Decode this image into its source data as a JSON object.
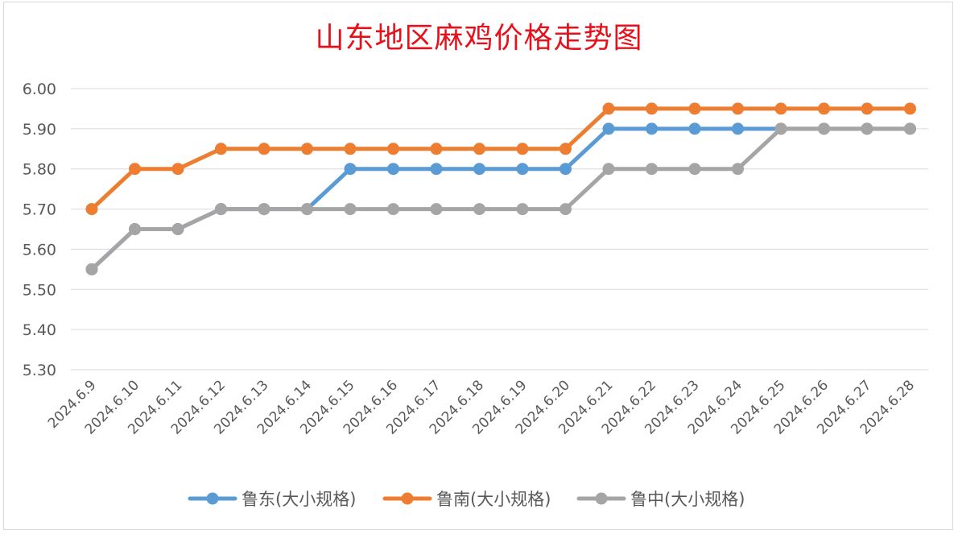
{
  "chart_data": {
    "type": "line",
    "title": "山东地区麻鸡价格走势图",
    "xlabel": "",
    "ylabel": "",
    "ylim": [
      5.3,
      6.0
    ],
    "y_ticks": [
      "6.00",
      "5.90",
      "5.80",
      "5.70",
      "5.60",
      "5.50",
      "5.40",
      "5.30"
    ],
    "grid": true,
    "legend_position": "bottom",
    "categories": [
      "2024.6.9",
      "2024.6.10",
      "2024.6.11",
      "2024.6.12",
      "2024.6.13",
      "2024.6.14",
      "2024.6.15",
      "2024.6.16",
      "2024.6.17",
      "2024.6.18",
      "2024.6.19",
      "2024.6.20",
      "2024.6.21",
      "2024.6.22",
      "2024.6.23",
      "2024.6.24",
      "2024.6.25",
      "2024.6.26",
      "2024.6.27",
      "2024.6.28"
    ],
    "series": [
      {
        "name": "鲁东(大小规格)",
        "color": "#5b9bd5",
        "values": [
          5.55,
          5.65,
          5.65,
          5.7,
          5.7,
          5.7,
          5.8,
          5.8,
          5.8,
          5.8,
          5.8,
          5.8,
          5.9,
          5.9,
          5.9,
          5.9,
          5.9,
          5.9,
          5.9,
          5.9
        ]
      },
      {
        "name": "鲁南(大小规格)",
        "color": "#ed7d31",
        "values": [
          5.7,
          5.8,
          5.8,
          5.85,
          5.85,
          5.85,
          5.85,
          5.85,
          5.85,
          5.85,
          5.85,
          5.85,
          5.95,
          5.95,
          5.95,
          5.95,
          5.95,
          5.95,
          5.95,
          5.95
        ]
      },
      {
        "name": "鲁中(大小规格)",
        "color": "#a5a5a5",
        "values": [
          5.55,
          5.65,
          5.65,
          5.7,
          5.7,
          5.7,
          5.7,
          5.7,
          5.7,
          5.7,
          5.7,
          5.7,
          5.8,
          5.8,
          5.8,
          5.8,
          5.9,
          5.9,
          5.9,
          5.9
        ]
      }
    ]
  }
}
